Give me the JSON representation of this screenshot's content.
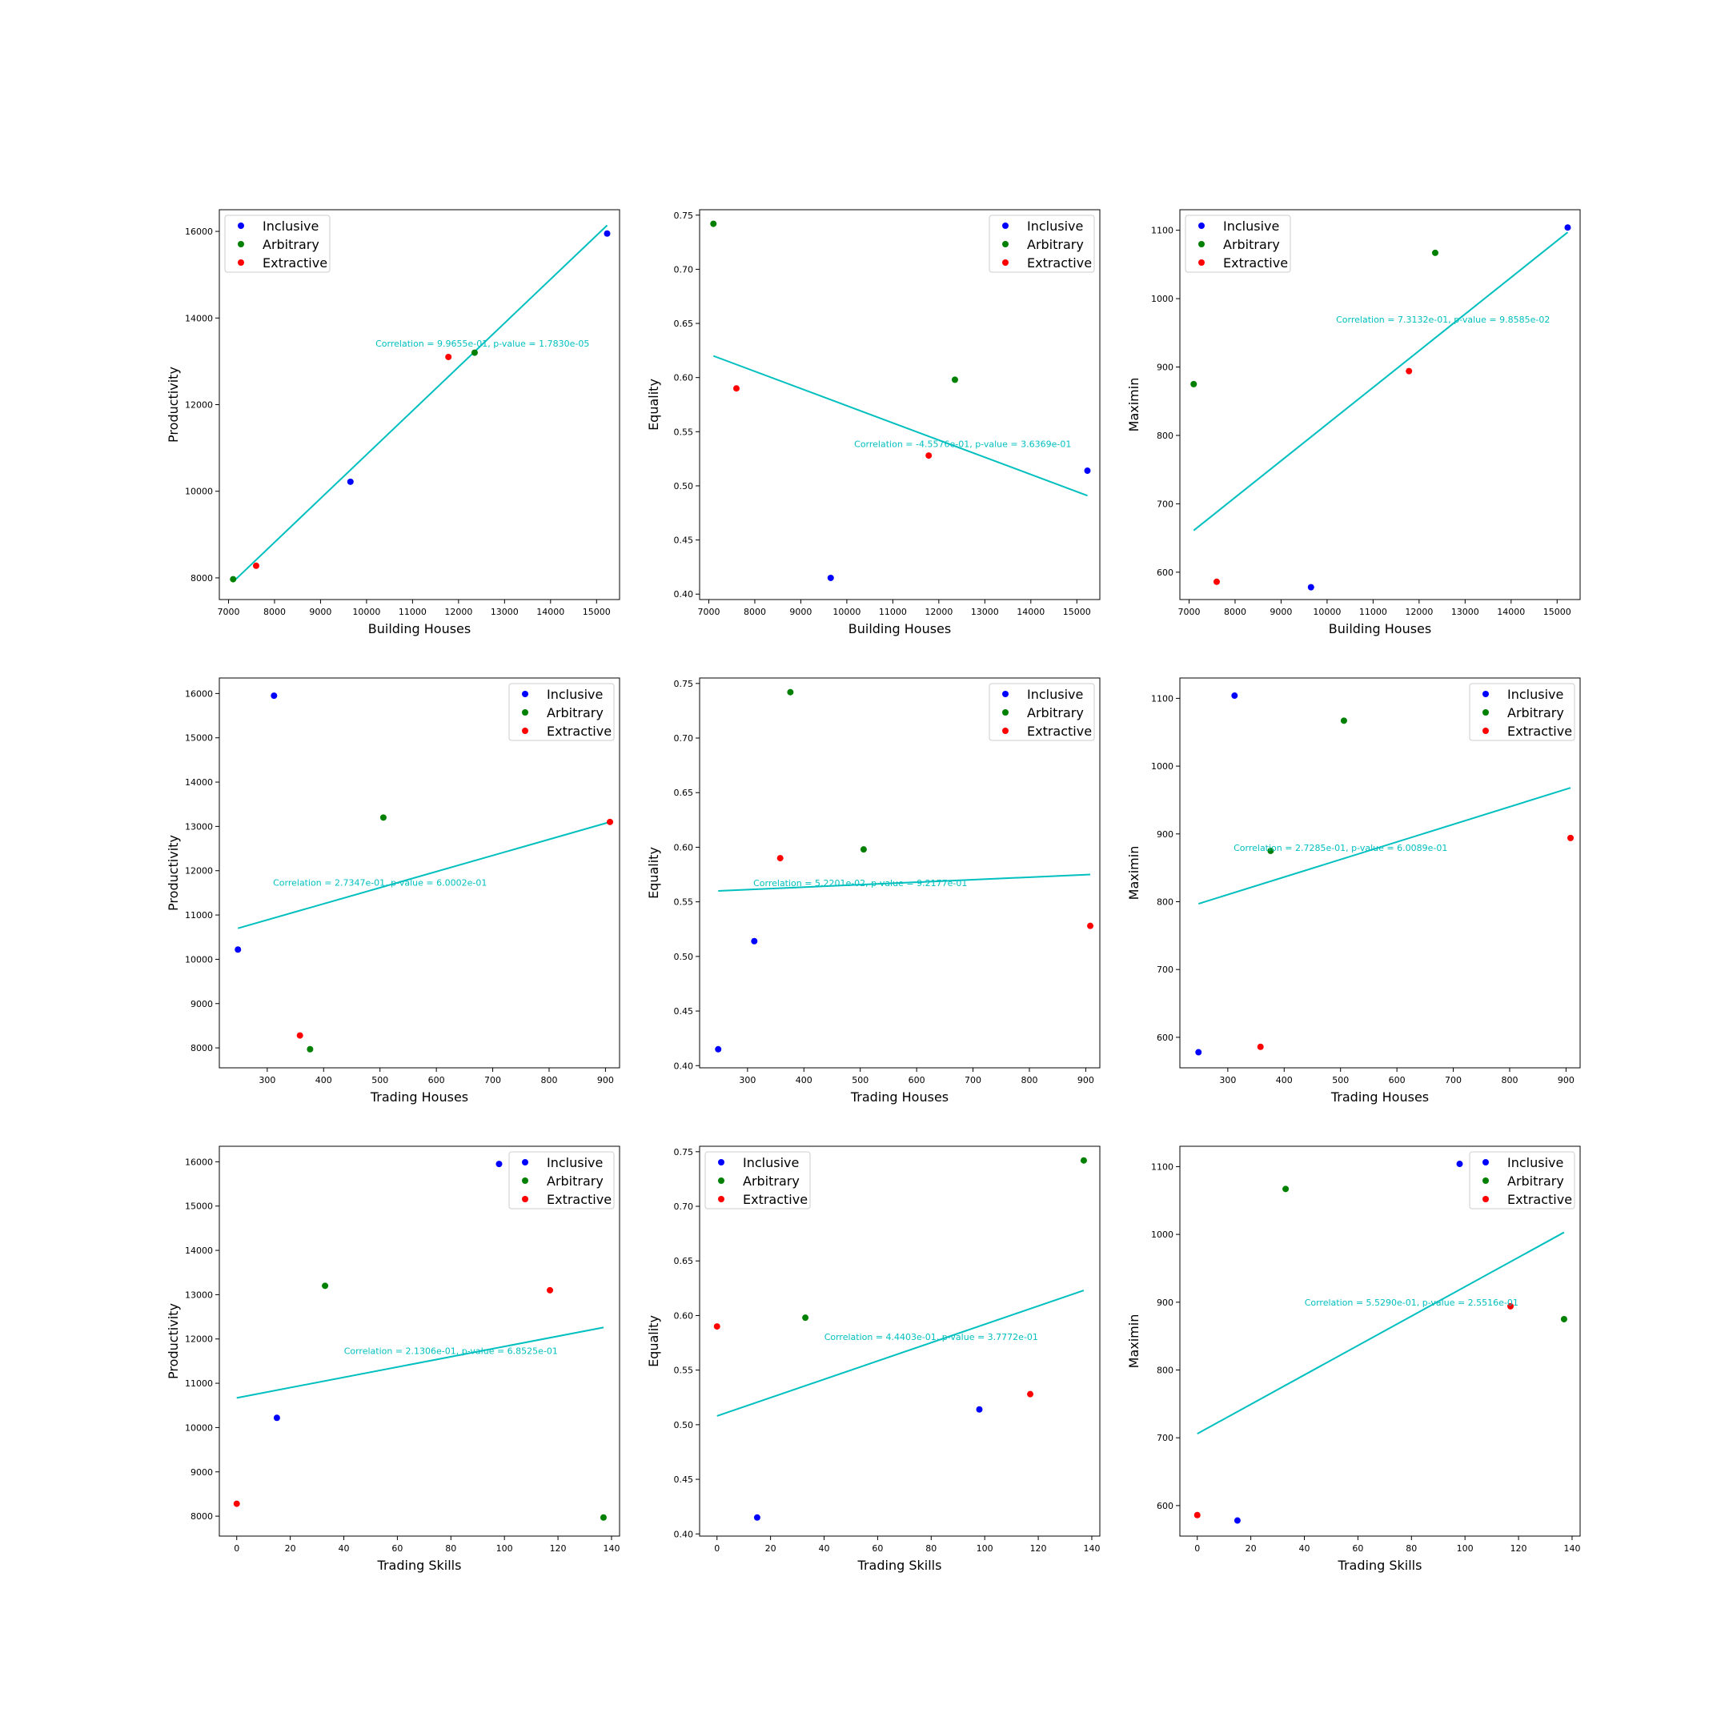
{
  "colors": {
    "Inclusive": "#0000ff",
    "Arbitrary": "#008000",
    "Extractive": "#ff0000",
    "fit": "#00bfbf"
  },
  "chart_data": [
    {
      "type": "scatter",
      "xlabel": "Building Houses",
      "ylabel": "Productivity",
      "xlim": [
        6800,
        15500
      ],
      "ylim": [
        7500,
        16500
      ],
      "xticks": [
        "7000",
        "8000",
        "9000",
        "10000",
        "11000",
        "12000",
        "13000",
        "14000",
        "15000"
      ],
      "yticks": [
        "8000",
        "10000",
        "12000",
        "14000",
        "16000"
      ],
      "legend_loc": "upper left",
      "series": [
        {
          "name": "Inclusive",
          "points": [
            [
              9650,
              10220
            ],
            [
              15230,
              15950
            ]
          ]
        },
        {
          "name": "Arbitrary",
          "points": [
            [
              7100,
              7970
            ],
            [
              12350,
              13200
            ]
          ]
        },
        {
          "name": "Extractive",
          "points": [
            [
              7600,
              8280
            ],
            [
              11780,
              13100
            ]
          ]
        }
      ],
      "fit": [
        [
          7100,
          7910
        ],
        [
          15230,
          16140
        ]
      ],
      "annotation": "Correlation = 9.9655e-01, p-value = 1.7830e-05",
      "annotation_pos": [
        12520,
        13340
      ]
    },
    {
      "type": "scatter",
      "xlabel": "Building Houses",
      "ylabel": "Equality",
      "xlim": [
        6800,
        15500
      ],
      "ylim": [
        0.395,
        0.755
      ],
      "xticks": [
        "7000",
        "8000",
        "9000",
        "10000",
        "11000",
        "12000",
        "13000",
        "14000",
        "15000"
      ],
      "yticks": [
        "0.40",
        "0.45",
        "0.50",
        "0.55",
        "0.60",
        "0.65",
        "0.70",
        "0.75"
      ],
      "legend_loc": "upper right",
      "series": [
        {
          "name": "Inclusive",
          "points": [
            [
              9650,
              0.415
            ],
            [
              15230,
              0.514
            ]
          ]
        },
        {
          "name": "Arbitrary",
          "points": [
            [
              7100,
              0.742
            ],
            [
              12350,
              0.598
            ]
          ]
        },
        {
          "name": "Extractive",
          "points": [
            [
              7600,
              0.59
            ],
            [
              11780,
              0.528
            ]
          ]
        }
      ],
      "fit": [
        [
          7100,
          0.62
        ],
        [
          15230,
          0.491
        ]
      ],
      "annotation": "Correlation = -4.5576e-01, p-value = 3.6369e-01",
      "annotation_pos": [
        12520,
        0.536
      ]
    },
    {
      "type": "scatter",
      "xlabel": "Building Houses",
      "ylabel": "Maximin",
      "xlim": [
        6800,
        15500
      ],
      "ylim": [
        560,
        1130
      ],
      "xticks": [
        "7000",
        "8000",
        "9000",
        "10000",
        "11000",
        "12000",
        "13000",
        "14000",
        "15000"
      ],
      "yticks": [
        "600",
        "700",
        "800",
        "900",
        "1000",
        "1100"
      ],
      "legend_loc": "upper left",
      "series": [
        {
          "name": "Inclusive",
          "points": [
            [
              9650,
              578
            ],
            [
              15230,
              1104
            ]
          ]
        },
        {
          "name": "Arbitrary",
          "points": [
            [
              7100,
              875
            ],
            [
              12350,
              1067
            ]
          ]
        },
        {
          "name": "Extractive",
          "points": [
            [
              7600,
              586
            ],
            [
              11780,
              894
            ]
          ]
        }
      ],
      "fit": [
        [
          7100,
          661
        ],
        [
          15230,
          1097
        ]
      ],
      "annotation": "Correlation = 7.3132e-01, p-value = 9.8585e-02",
      "annotation_pos": [
        12520,
        965
      ]
    },
    {
      "type": "scatter",
      "xlabel": "Trading Houses",
      "ylabel": "Productivity",
      "xlim": [
        215,
        925
      ],
      "ylim": [
        7550,
        16350
      ],
      "xticks": [
        "300",
        "400",
        "500",
        "600",
        "700",
        "800",
        "900"
      ],
      "yticks": [
        "8000",
        "9000",
        "10000",
        "11000",
        "12000",
        "13000",
        "14000",
        "15000",
        "16000"
      ],
      "legend_loc": "upper right",
      "series": [
        {
          "name": "Inclusive",
          "points": [
            [
              248,
              10220
            ],
            [
              312,
              15950
            ]
          ]
        },
        {
          "name": "Arbitrary",
          "points": [
            [
              376,
              7970
            ],
            [
              506,
              13200
            ]
          ]
        },
        {
          "name": "Extractive",
          "points": [
            [
              358,
              8280
            ],
            [
              908,
              13100
            ]
          ]
        }
      ],
      "fit": [
        [
          248,
          10700
        ],
        [
          908,
          13100
        ]
      ],
      "annotation": "Correlation = 2.7347e-01, p-value = 6.0002e-01",
      "annotation_pos": [
        500,
        11660
      ]
    },
    {
      "type": "scatter",
      "xlabel": "Trading Houses",
      "ylabel": "Equality",
      "xlim": [
        215,
        925
      ],
      "ylim": [
        0.398,
        0.755
      ],
      "xticks": [
        "300",
        "400",
        "500",
        "600",
        "700",
        "800",
        "900"
      ],
      "yticks": [
        "0.40",
        "0.45",
        "0.50",
        "0.55",
        "0.60",
        "0.65",
        "0.70",
        "0.75"
      ],
      "legend_loc": "upper right",
      "series": [
        {
          "name": "Inclusive",
          "points": [
            [
              248,
              0.415
            ],
            [
              312,
              0.514
            ]
          ]
        },
        {
          "name": "Arbitrary",
          "points": [
            [
              376,
              0.742
            ],
            [
              506,
              0.598
            ]
          ]
        },
        {
          "name": "Extractive",
          "points": [
            [
              358,
              0.59
            ],
            [
              908,
              0.528
            ]
          ]
        }
      ],
      "fit": [
        [
          248,
          0.56
        ],
        [
          908,
          0.575
        ]
      ],
      "annotation": "Correlation = 5.2201e-02, p-value = 9.2177e-01",
      "annotation_pos": [
        500,
        0.5645
      ]
    },
    {
      "type": "scatter",
      "xlabel": "Trading Houses",
      "ylabel": "Maximin",
      "xlim": [
        215,
        925
      ],
      "ylim": [
        555,
        1130
      ],
      "xticks": [
        "300",
        "400",
        "500",
        "600",
        "700",
        "800",
        "900"
      ],
      "yticks": [
        "600",
        "700",
        "800",
        "900",
        "1000",
        "1100"
      ],
      "legend_loc": "upper right",
      "series": [
        {
          "name": "Inclusive",
          "points": [
            [
              248,
              578
            ],
            [
              312,
              1104
            ]
          ]
        },
        {
          "name": "Arbitrary",
          "points": [
            [
              376,
              875
            ],
            [
              506,
              1067
            ]
          ]
        },
        {
          "name": "Extractive",
          "points": [
            [
              358,
              586
            ],
            [
              908,
              894
            ]
          ]
        }
      ],
      "fit": [
        [
          248,
          797
        ],
        [
          908,
          968
        ]
      ],
      "annotation": "Correlation = 2.7285e-01, p-value = 6.0089e-01",
      "annotation_pos": [
        500,
        875
      ]
    },
    {
      "type": "scatter",
      "xlabel": "Trading Skills",
      "ylabel": "Productivity",
      "xlim": [
        -6.5,
        143
      ],
      "ylim": [
        7550,
        16350
      ],
      "xticks": [
        "0",
        "20",
        "40",
        "60",
        "80",
        "100",
        "120",
        "140"
      ],
      "yticks": [
        "8000",
        "9000",
        "10000",
        "11000",
        "12000",
        "13000",
        "14000",
        "15000",
        "16000"
      ],
      "legend_loc": "upper right",
      "series": [
        {
          "name": "Inclusive",
          "points": [
            [
              15,
              10220
            ],
            [
              98,
              15950
            ]
          ]
        },
        {
          "name": "Arbitrary",
          "points": [
            [
              33,
              13200
            ],
            [
              137,
              7970
            ]
          ]
        },
        {
          "name": "Extractive",
          "points": [
            [
              0,
              8280
            ],
            [
              117,
              13100
            ]
          ]
        }
      ],
      "fit": [
        [
          0,
          10670
        ],
        [
          137,
          12260
        ]
      ],
      "annotation": "Correlation = 2.1306e-01, p-value = 6.8525e-01",
      "annotation_pos": [
        80,
        11660
      ]
    },
    {
      "type": "scatter",
      "xlabel": "Trading Skills",
      "ylabel": "Equality",
      "xlim": [
        -6.5,
        143
      ],
      "ylim": [
        0.398,
        0.755
      ],
      "xticks": [
        "0",
        "20",
        "40",
        "60",
        "80",
        "100",
        "120",
        "140"
      ],
      "yticks": [
        "0.40",
        "0.45",
        "0.50",
        "0.55",
        "0.60",
        "0.65",
        "0.70",
        "0.75"
      ],
      "legend_loc": "upper left",
      "series": [
        {
          "name": "Inclusive",
          "points": [
            [
              15,
              0.415
            ],
            [
              98,
              0.514
            ]
          ]
        },
        {
          "name": "Arbitrary",
          "points": [
            [
              33,
              0.598
            ],
            [
              137,
              0.742
            ]
          ]
        },
        {
          "name": "Extractive",
          "points": [
            [
              0,
              0.59
            ],
            [
              117,
              0.528
            ]
          ]
        }
      ],
      "fit": [
        [
          0,
          0.508
        ],
        [
          137,
          0.623
        ]
      ],
      "annotation": "Correlation = 4.4403e-01, p-value = 3.7772e-01",
      "annotation_pos": [
        80,
        0.5775
      ]
    },
    {
      "type": "scatter",
      "xlabel": "Trading Skills",
      "ylabel": "Maximin",
      "xlim": [
        -6.5,
        143
      ],
      "ylim": [
        555,
        1130
      ],
      "xticks": [
        "0",
        "20",
        "40",
        "60",
        "80",
        "100",
        "120",
        "140"
      ],
      "yticks": [
        "600",
        "700",
        "800",
        "900",
        "1000",
        "1100"
      ],
      "legend_loc": "upper right",
      "series": [
        {
          "name": "Inclusive",
          "points": [
            [
              15,
              578
            ],
            [
              98,
              1104
            ]
          ]
        },
        {
          "name": "Arbitrary",
          "points": [
            [
              33,
              1067
            ],
            [
              137,
              875
            ]
          ]
        },
        {
          "name": "Extractive",
          "points": [
            [
              0,
              586
            ],
            [
              117,
              894
            ]
          ]
        }
      ],
      "fit": [
        [
          0,
          706
        ],
        [
          137,
          1003
        ]
      ],
      "annotation": "Correlation = 5.5290e-01, p-value = 2.5516e-01",
      "annotation_pos": [
        80,
        895
      ]
    }
  ]
}
